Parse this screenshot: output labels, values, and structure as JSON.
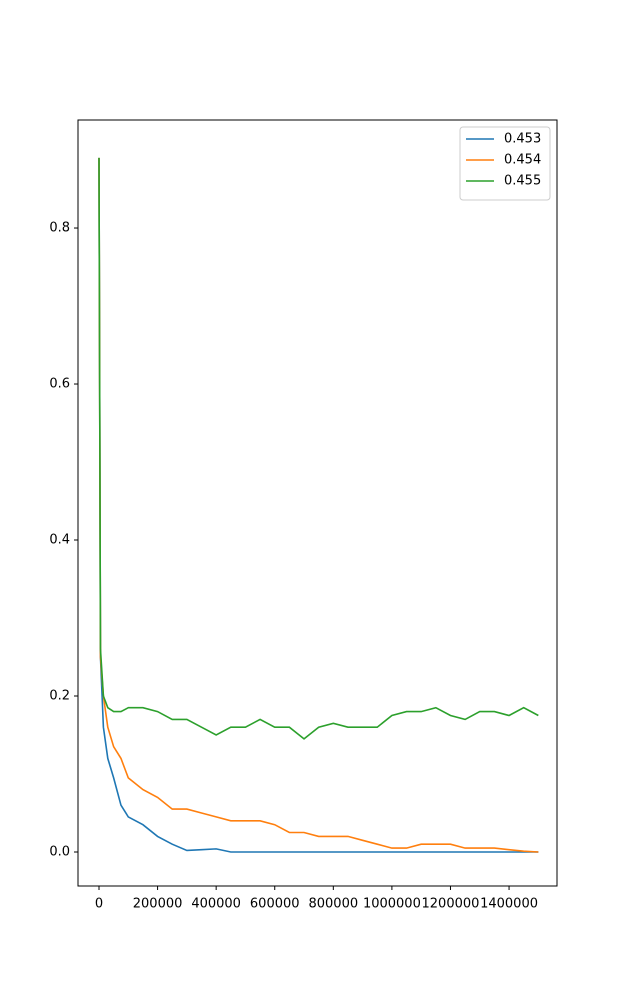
{
  "chart_data": {
    "type": "line",
    "x": [
      0,
      5000,
      15000,
      30000,
      50000,
      75000,
      100000,
      150000,
      200000,
      250000,
      300000,
      350000,
      400000,
      450000,
      500000,
      550000,
      600000,
      650000,
      700000,
      750000,
      800000,
      850000,
      900000,
      950000,
      1000000,
      1050000,
      1100000,
      1150000,
      1200000,
      1250000,
      1300000,
      1350000,
      1400000,
      1450000,
      1500000
    ],
    "series": [
      {
        "name": "0.453",
        "color": "#1f77b4",
        "values": [
          0.89,
          0.25,
          0.16,
          0.12,
          0.095,
          0.06,
          0.045,
          0.035,
          0.02,
          0.01,
          0.002,
          0.003,
          0.004,
          0,
          0,
          0,
          0,
          0,
          0,
          0,
          0,
          0,
          0,
          0,
          0,
          0,
          0,
          0,
          0,
          0,
          0,
          0,
          0,
          0,
          0
        ]
      },
      {
        "name": "0.454",
        "color": "#ff7f0e",
        "values": [
          0.89,
          0.25,
          0.2,
          0.16,
          0.135,
          0.12,
          0.095,
          0.08,
          0.07,
          0.055,
          0.055,
          0.05,
          0.045,
          0.04,
          0.04,
          0.04,
          0.035,
          0.025,
          0.025,
          0.02,
          0.02,
          0.02,
          0.015,
          0.01,
          0.005,
          0.005,
          0.01,
          0.01,
          0.01,
          0.005,
          0.005,
          0.005,
          0.003,
          0.001,
          0
        ]
      },
      {
        "name": "0.455",
        "color": "#2ca02c",
        "values": [
          0.89,
          0.26,
          0.2,
          0.185,
          0.18,
          0.18,
          0.185,
          0.185,
          0.18,
          0.17,
          0.17,
          0.16,
          0.15,
          0.16,
          0.16,
          0.17,
          0.16,
          0.16,
          0.145,
          0.16,
          0.165,
          0.16,
          0.16,
          0.16,
          0.175,
          0.18,
          0.18,
          0.185,
          0.175,
          0.17,
          0.18,
          0.18,
          0.175,
          0.185,
          0.175
        ]
      }
    ],
    "xlim": [
      -71700,
      1563700
    ],
    "ylim": [
      -0.0436,
      0.9385
    ],
    "xticks": [
      0,
      200000,
      400000,
      600000,
      800000,
      1000000,
      1200000,
      1400000
    ],
    "yticks": [
      {
        "value": 0,
        "label": "0.0"
      },
      0.2,
      0.4,
      0.6,
      0.8
    ],
    "legend": "upper right"
  }
}
